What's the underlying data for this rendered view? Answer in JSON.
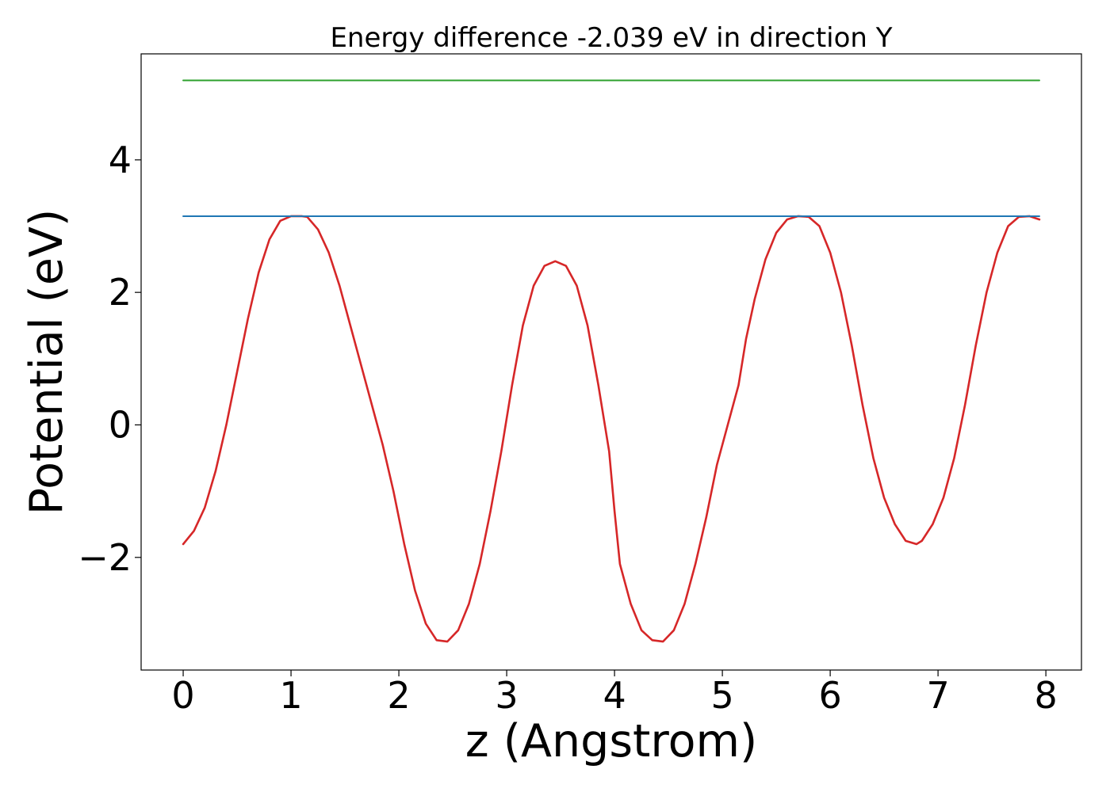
{
  "chart_data": {
    "type": "line",
    "title": "Energy difference -2.039 eV in direction Y",
    "xlabel": "z (Angstrom)",
    "ylabel": "Potential (eV)",
    "xlim": [
      -0.39,
      8.33
    ],
    "ylim": [
      -3.7,
      5.6
    ],
    "xticks": [
      0,
      1,
      2,
      3,
      4,
      5,
      6,
      7,
      8
    ],
    "xtick_labels": [
      "0",
      "1",
      "2",
      "3",
      "4",
      "5",
      "6",
      "7",
      "8"
    ],
    "yticks": [
      -2,
      0,
      2,
      4
    ],
    "ytick_labels": [
      "−2",
      "0",
      "2",
      "4"
    ],
    "grid": false,
    "series": [
      {
        "color": "#d62728",
        "x": [
          0.0,
          0.1,
          0.2,
          0.3,
          0.4,
          0.5,
          0.6,
          0.7,
          0.8,
          0.9,
          1.0,
          1.1,
          1.15,
          1.25,
          1.35,
          1.45,
          1.55,
          1.65,
          1.75,
          1.85,
          1.95,
          2.05,
          2.15,
          2.25,
          2.35,
          2.45,
          2.55,
          2.65,
          2.75,
          2.85,
          2.95,
          3.05,
          3.15,
          3.25,
          3.35,
          3.45,
          3.55,
          3.65,
          3.75,
          3.85,
          3.95,
          4.0,
          4.05,
          4.15,
          4.25,
          4.35,
          4.45,
          4.55,
          4.65,
          4.75,
          4.85,
          4.95,
          5.05,
          5.15,
          5.22,
          5.3,
          5.4,
          5.5,
          5.6,
          5.7,
          5.8,
          5.9,
          6.0,
          6.1,
          6.2,
          6.3,
          6.4,
          6.5,
          6.6,
          6.7,
          6.8,
          6.85,
          6.95,
          7.05,
          7.15,
          7.25,
          7.35,
          7.45,
          7.55,
          7.65,
          7.75,
          7.85,
          7.94
        ],
        "y": [
          -1.8,
          -1.6,
          -1.25,
          -0.7,
          0.0,
          0.8,
          1.6,
          2.3,
          2.8,
          3.08,
          3.15,
          3.15,
          3.14,
          2.95,
          2.6,
          2.1,
          1.5,
          0.9,
          0.3,
          -0.3,
          -1.0,
          -1.8,
          -2.5,
          -3.0,
          -3.25,
          -3.27,
          -3.1,
          -2.7,
          -2.1,
          -1.3,
          -0.4,
          0.6,
          1.5,
          2.1,
          2.4,
          2.47,
          2.4,
          2.1,
          1.5,
          0.6,
          -0.4,
          -1.3,
          -2.1,
          -2.7,
          -3.1,
          -3.25,
          -3.27,
          -3.1,
          -2.7,
          -2.1,
          -1.4,
          -0.6,
          0.0,
          0.6,
          1.3,
          1.9,
          2.5,
          2.9,
          3.1,
          3.15,
          3.14,
          3.0,
          2.6,
          2.0,
          1.2,
          0.3,
          -0.5,
          -1.1,
          -1.5,
          -1.75,
          -1.8,
          -1.75,
          -1.5,
          -1.1,
          -0.5,
          0.3,
          1.2,
          2.0,
          2.6,
          3.0,
          3.14,
          3.15,
          3.1
        ]
      },
      {
        "color": "#1f77b4",
        "x": [
          0.0,
          7.94
        ],
        "y": [
          3.15,
          3.15
        ]
      },
      {
        "color": "#2ca02c",
        "x": [
          0.0,
          7.94
        ],
        "y": [
          5.2,
          5.2
        ]
      }
    ]
  }
}
